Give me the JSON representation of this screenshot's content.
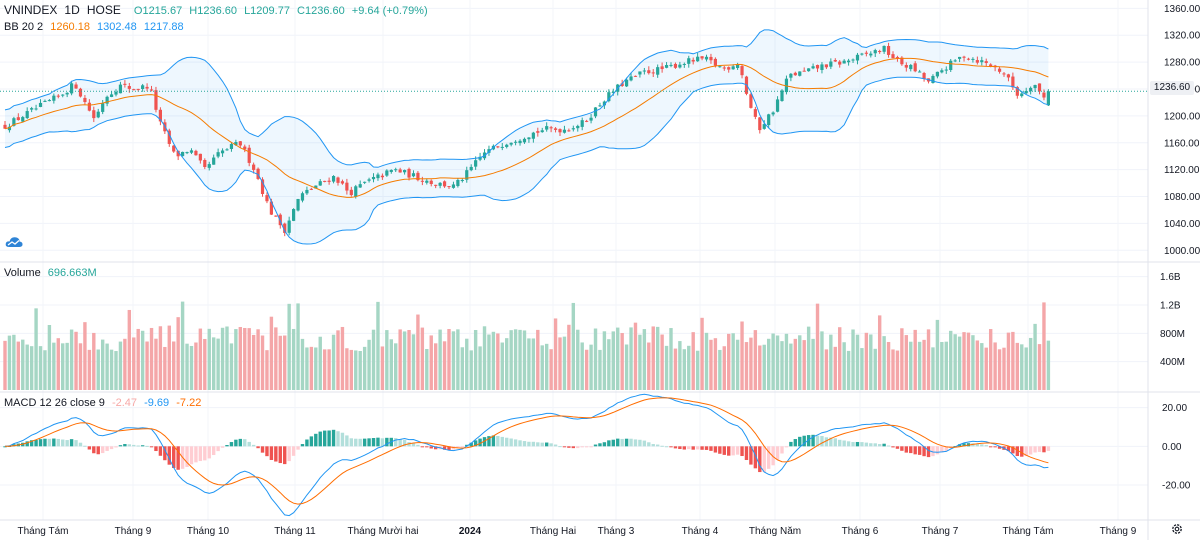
{
  "header": {
    "symbol": "VNINDEX",
    "interval": "1D",
    "exchange": "HOSE",
    "open": "O1215.67",
    "high": "H1236.60",
    "low": "L1209.77",
    "close": "C1236.60",
    "change": "+9.64 (+0.79%)",
    "bb_label": "BB 20 2",
    "bb_basis": "1260.18",
    "bb_upper": "1302.48",
    "bb_lower": "1217.88"
  },
  "price_tag": "1236.60",
  "volume_label": "Volume",
  "volume_value": "696.663M",
  "macd": {
    "label": "MACD 12 26 close 9",
    "hist": "-2.47",
    "macd": "-9.69",
    "signal": "-7.22"
  },
  "colors": {
    "up": "#26a69a",
    "down": "#ef5350",
    "up_volume": "#a5d6c4",
    "down_volume": "#f4a6a8",
    "bb_band": "#2196f3",
    "bb_basis": "#f57c00",
    "macd_line": "#2196f3",
    "signal_line": "#ff6d00"
  },
  "chart_data": [
    {
      "type": "candlestick",
      "title": "VNINDEX 1D HOSE",
      "price_axis_ticks": [
        "1360.00",
        "1320.00",
        "1280.00",
        "1240.00",
        "1200.00",
        "1160.00",
        "1120.00",
        "1080.00",
        "1040.00",
        "1000.00"
      ],
      "ylim": [
        990,
        1365
      ],
      "x_labels": [
        "Tháng Tám",
        "Tháng 9",
        "Tháng 10",
        "Tháng 11",
        "Tháng Mười hai",
        "2024",
        "Tháng Hai",
        "Tháng 3",
        "Tháng 4",
        "Tháng Năm",
        "Tháng 6",
        "Tháng 7",
        "Tháng Tám",
        "Tháng 9"
      ],
      "close_path": [
        {
          "m": 0,
          "v": 1185
        },
        {
          "m": 0.3,
          "v": 1210
        },
        {
          "m": 0.55,
          "v": 1230
        },
        {
          "m": 0.7,
          "v": 1248
        },
        {
          "m": 0.8,
          "v": 1220
        },
        {
          "m": 0.9,
          "v": 1195
        },
        {
          "m": 1.0,
          "v": 1228
        },
        {
          "m": 1.15,
          "v": 1245
        },
        {
          "m": 1.3,
          "v": 1240
        },
        {
          "m": 1.45,
          "v": 1245
        },
        {
          "m": 1.55,
          "v": 1190
        },
        {
          "m": 1.7,
          "v": 1140
        },
        {
          "m": 1.85,
          "v": 1150
        },
        {
          "m": 2.0,
          "v": 1120
        },
        {
          "m": 2.15,
          "v": 1145
        },
        {
          "m": 2.35,
          "v": 1160
        },
        {
          "m": 2.5,
          "v": 1120
        },
        {
          "m": 2.65,
          "v": 1060
        },
        {
          "m": 2.8,
          "v": 1030
        },
        {
          "m": 2.95,
          "v": 1080
        },
        {
          "m": 3.1,
          "v": 1095
        },
        {
          "m": 3.3,
          "v": 1110
        },
        {
          "m": 3.45,
          "v": 1085
        },
        {
          "m": 3.6,
          "v": 1100
        },
        {
          "m": 3.75,
          "v": 1110
        },
        {
          "m": 3.9,
          "v": 1120
        },
        {
          "m": 4.1,
          "v": 1110
        },
        {
          "m": 4.3,
          "v": 1100
        },
        {
          "m": 4.5,
          "v": 1095
        },
        {
          "m": 4.6,
          "v": 1110
        },
        {
          "m": 4.8,
          "v": 1145
        },
        {
          "m": 5.0,
          "v": 1160
        },
        {
          "m": 5.2,
          "v": 1170
        },
        {
          "m": 5.4,
          "v": 1180
        },
        {
          "m": 5.6,
          "v": 1180
        },
        {
          "m": 5.8,
          "v": 1190
        },
        {
          "m": 6.0,
          "v": 1225
        },
        {
          "m": 6.2,
          "v": 1250
        },
        {
          "m": 6.4,
          "v": 1265
        },
        {
          "m": 6.6,
          "v": 1270
        },
        {
          "m": 6.8,
          "v": 1280
        },
        {
          "m": 7.0,
          "v": 1285
        },
        {
          "m": 7.2,
          "v": 1270
        },
        {
          "m": 7.35,
          "v": 1280
        },
        {
          "m": 7.45,
          "v": 1220
        },
        {
          "m": 7.55,
          "v": 1180
        },
        {
          "m": 7.7,
          "v": 1210
        },
        {
          "m": 7.85,
          "v": 1260
        },
        {
          "m": 8.0,
          "v": 1265
        },
        {
          "m": 8.2,
          "v": 1275
        },
        {
          "m": 8.4,
          "v": 1280
        },
        {
          "m": 8.6,
          "v": 1290
        },
        {
          "m": 8.8,
          "v": 1300
        },
        {
          "m": 8.95,
          "v": 1280
        },
        {
          "m": 9.1,
          "v": 1270
        },
        {
          "m": 9.25,
          "v": 1250
        },
        {
          "m": 9.4,
          "v": 1270
        },
        {
          "m": 9.6,
          "v": 1290
        },
        {
          "m": 9.8,
          "v": 1280
        },
        {
          "m": 10.0,
          "v": 1265
        },
        {
          "m": 10.15,
          "v": 1230
        },
        {
          "m": 10.3,
          "v": 1250
        },
        {
          "m": 10.4,
          "v": 1226
        },
        {
          "m": 10.45,
          "v": 1237
        }
      ]
    },
    {
      "type": "bar",
      "title": "Volume",
      "axis_ticks": [
        "1.6B",
        "1.2B",
        "800M",
        "400M"
      ],
      "ylim": [
        0,
        1.75
      ],
      "unit": "B",
      "last_value": 0.696663
    },
    {
      "type": "line",
      "title": "MACD 12 26 close 9",
      "axis_ticks": [
        "20.00",
        "0.00",
        "-20.00"
      ],
      "ylim": [
        -36,
        26
      ],
      "series": [
        {
          "name": "MACD",
          "values": [
            -9.69
          ]
        },
        {
          "name": "Signal",
          "values": [
            -7.22
          ]
        },
        {
          "name": "Histogram",
          "values": [
            -2.47
          ]
        }
      ]
    }
  ]
}
